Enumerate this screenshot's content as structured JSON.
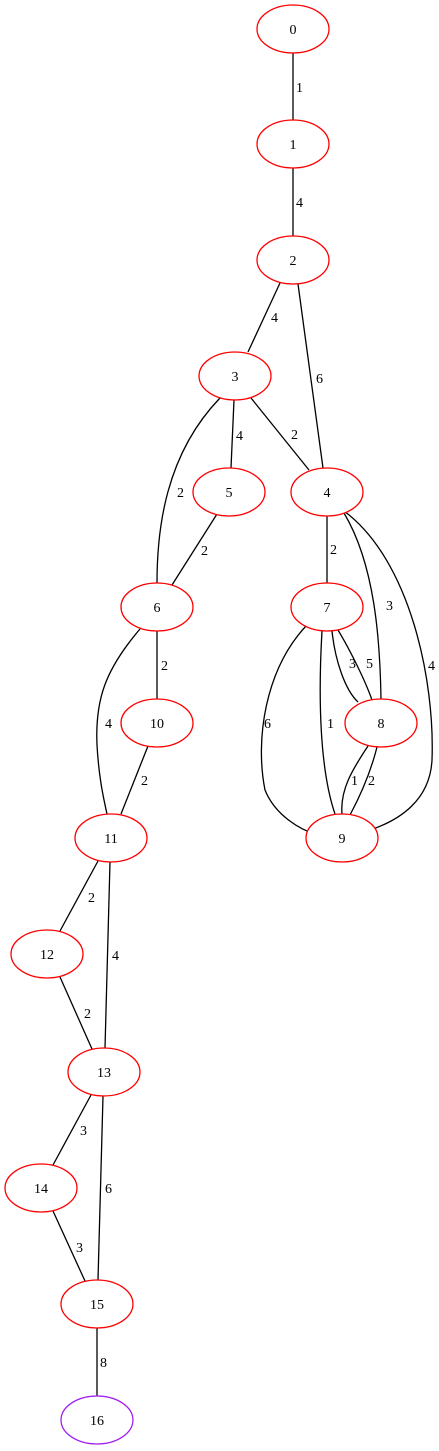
{
  "colors": {
    "node_default": "#ff0000",
    "node_terminal": "#a020f0",
    "edge": "#000000"
  },
  "nodes": [
    {
      "id": "0",
      "label": "0",
      "color": "node_default"
    },
    {
      "id": "1",
      "label": "1",
      "color": "node_default"
    },
    {
      "id": "2",
      "label": "2",
      "color": "node_default"
    },
    {
      "id": "3",
      "label": "3",
      "color": "node_default"
    },
    {
      "id": "4",
      "label": "4",
      "color": "node_default"
    },
    {
      "id": "5",
      "label": "5",
      "color": "node_default"
    },
    {
      "id": "6",
      "label": "6",
      "color": "node_default"
    },
    {
      "id": "7",
      "label": "7",
      "color": "node_default"
    },
    {
      "id": "8",
      "label": "8",
      "color": "node_default"
    },
    {
      "id": "9",
      "label": "9",
      "color": "node_default"
    },
    {
      "id": "10",
      "label": "10",
      "color": "node_default"
    },
    {
      "id": "11",
      "label": "11",
      "color": "node_default"
    },
    {
      "id": "12",
      "label": "12",
      "color": "node_default"
    },
    {
      "id": "13",
      "label": "13",
      "color": "node_default"
    },
    {
      "id": "14",
      "label": "14",
      "color": "node_default"
    },
    {
      "id": "15",
      "label": "15",
      "color": "node_default"
    },
    {
      "id": "16",
      "label": "16",
      "color": "node_terminal"
    }
  ],
  "edges": [
    {
      "id": "e0",
      "from": "0",
      "to": "1",
      "weight": "1"
    },
    {
      "id": "e1",
      "from": "1",
      "to": "2",
      "weight": "4"
    },
    {
      "id": "e2",
      "from": "2",
      "to": "3",
      "weight": "4"
    },
    {
      "id": "e3",
      "from": "2",
      "to": "4",
      "weight": "6"
    },
    {
      "id": "e4",
      "from": "3",
      "to": "5",
      "weight": "4"
    },
    {
      "id": "e5",
      "from": "3",
      "to": "4",
      "weight": "2"
    },
    {
      "id": "e6",
      "from": "3",
      "to": "6",
      "weight": "2"
    },
    {
      "id": "e7",
      "from": "5",
      "to": "6",
      "weight": "2"
    },
    {
      "id": "e8",
      "from": "4",
      "to": "7",
      "weight": "2"
    },
    {
      "id": "e9",
      "from": "4",
      "to": "8",
      "weight": "3"
    },
    {
      "id": "e10",
      "from": "4",
      "to": "9",
      "weight": "4"
    },
    {
      "id": "e11",
      "from": "7",
      "to": "8",
      "weight": "3"
    },
    {
      "id": "e12",
      "from": "7",
      "to": "8",
      "weight": "5"
    },
    {
      "id": "e13",
      "from": "7",
      "to": "9",
      "weight": "6"
    },
    {
      "id": "e14",
      "from": "7",
      "to": "9",
      "weight": "1"
    },
    {
      "id": "e15",
      "from": "8",
      "to": "9",
      "weight": "1"
    },
    {
      "id": "e16",
      "from": "8",
      "to": "9",
      "weight": "2"
    },
    {
      "id": "e17",
      "from": "6",
      "to": "10",
      "weight": "2"
    },
    {
      "id": "e18",
      "from": "6",
      "to": "11",
      "weight": "4"
    },
    {
      "id": "e19",
      "from": "10",
      "to": "11",
      "weight": "2"
    },
    {
      "id": "e20",
      "from": "11",
      "to": "12",
      "weight": "2"
    },
    {
      "id": "e21",
      "from": "11",
      "to": "13",
      "weight": "4"
    },
    {
      "id": "e22",
      "from": "12",
      "to": "13",
      "weight": "2"
    },
    {
      "id": "e23",
      "from": "13",
      "to": "14",
      "weight": "3"
    },
    {
      "id": "e24",
      "from": "13",
      "to": "15",
      "weight": "6"
    },
    {
      "id": "e25",
      "from": "14",
      "to": "15",
      "weight": "3"
    },
    {
      "id": "e26",
      "from": "15",
      "to": "16",
      "weight": "8"
    }
  ]
}
